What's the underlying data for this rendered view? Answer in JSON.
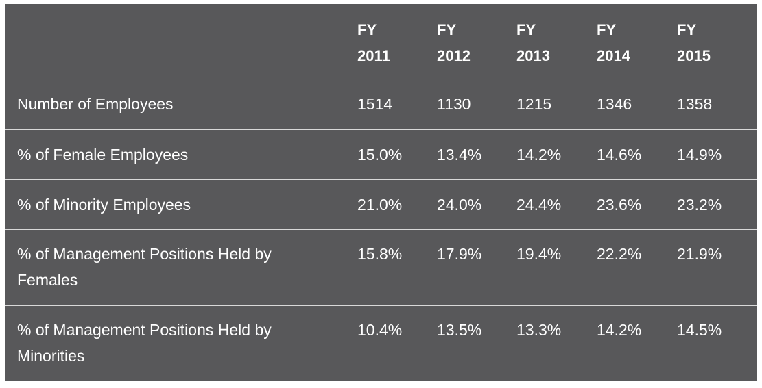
{
  "table": {
    "headers": [
      {
        "line1": "FY",
        "line2": "2011"
      },
      {
        "line1": "FY",
        "line2": "2012"
      },
      {
        "line1": "FY",
        "line2": "2013"
      },
      {
        "line1": "FY",
        "line2": "2014"
      },
      {
        "line1": "FY",
        "line2": "2015"
      }
    ],
    "rows": [
      {
        "label": "Number of Employees",
        "values": [
          "1514",
          "1130",
          "1215",
          "1346",
          "1358"
        ]
      },
      {
        "label": "% of Female Employees",
        "values": [
          "15.0%",
          "13.4%",
          "14.2%",
          "14.6%",
          "14.9%"
        ]
      },
      {
        "label": "% of Minority Employees",
        "values": [
          "21.0%",
          "24.0%",
          "24.4%",
          "23.6%",
          "23.2%"
        ]
      },
      {
        "label": "% of Management Positions Held by Females",
        "values": [
          "15.8%",
          "17.9%",
          "19.4%",
          "22.2%",
          "21.9%"
        ]
      },
      {
        "label": "% of Management Positions Held by Minorities",
        "values": [
          "10.4%",
          "13.5%",
          "13.3%",
          "14.2%",
          "14.5%"
        ]
      }
    ]
  },
  "colors": {
    "background": "#58585a",
    "text": "#ffffff",
    "divider": "#d9d9d9"
  }
}
